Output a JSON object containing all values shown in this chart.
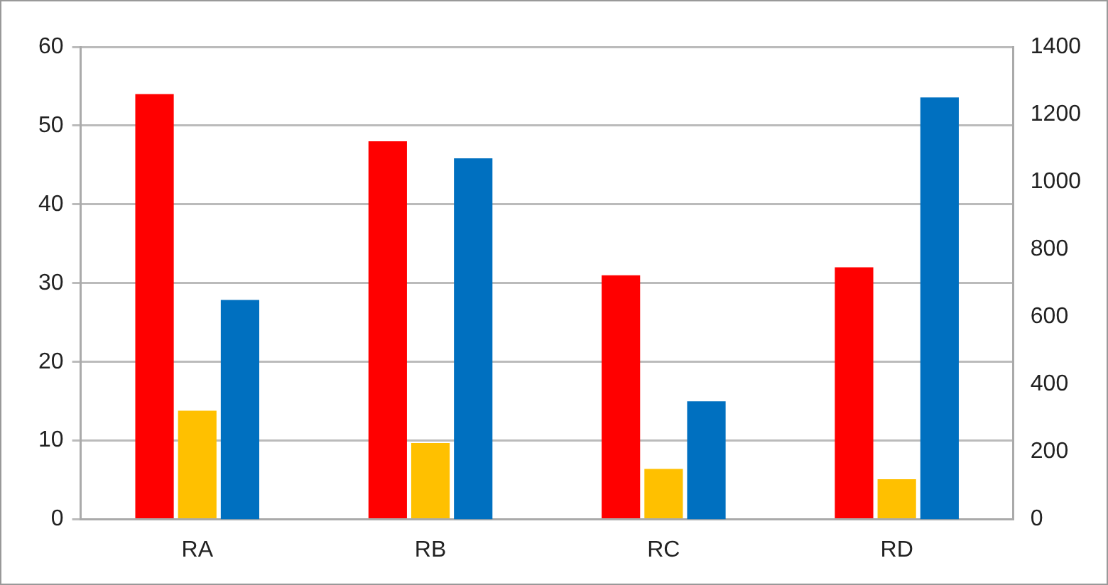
{
  "chart_data": {
    "type": "bar",
    "categories": [
      "RA",
      "RB",
      "RC",
      "RD"
    ],
    "series": [
      {
        "color": "#ff0000",
        "values": [
          54,
          48,
          31,
          32
        ]
      },
      {
        "color": "#ffc000",
        "values": [
          13.8,
          9.7,
          6.4,
          5.1
        ]
      },
      {
        "color": "#0070c0",
        "values": [
          650,
          1070,
          350,
          1250
        ],
        "axis": "y2"
      }
    ],
    "ylim": [
      0,
      60
    ],
    "yticks": [
      0,
      10,
      20,
      30,
      40,
      50,
      60
    ],
    "y2lim": [
      0,
      1400
    ],
    "y2ticks": [
      0,
      200,
      400,
      600,
      800,
      1000,
      1200,
      1400
    ],
    "grid": "y",
    "legend": false
  }
}
